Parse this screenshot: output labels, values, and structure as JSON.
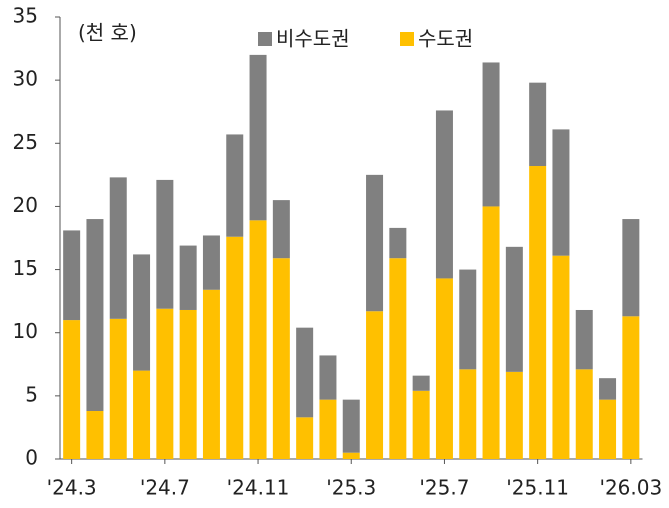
{
  "chart_data": {
    "type": "stacked_bar",
    "annotation": "(천 호)",
    "categories": [
      "'24.3",
      null,
      null,
      null,
      "'24.7",
      null,
      null,
      null,
      "'24.11",
      null,
      null,
      null,
      "'25.3",
      null,
      null,
      null,
      "'25.7",
      null,
      null,
      null,
      "'25.11",
      null,
      null,
      null,
      "'26.03"
    ],
    "series": [
      {
        "name": "비수도권",
        "color": "#808080",
        "values": [
          7.1,
          15.2,
          11.2,
          9.2,
          10.2,
          5.1,
          4.3,
          8.1,
          13.1,
          4.6,
          7.1,
          3.5,
          4.2,
          10.8,
          2.4,
          1.2,
          13.3,
          7.9,
          11.4,
          9.9,
          6.6,
          10.0,
          4.7,
          1.7,
          7.7
        ]
      },
      {
        "name": "수도권",
        "color": "#FFC000",
        "values": [
          11.0,
          3.8,
          11.1,
          7.0,
          11.9,
          11.8,
          13.4,
          17.6,
          18.9,
          15.9,
          3.3,
          4.7,
          0.5,
          11.7,
          15.9,
          5.4,
          14.3,
          7.1,
          20.0,
          6.9,
          23.2,
          16.1,
          7.1,
          4.7,
          11.3
        ]
      }
    ],
    "ylim": [
      0,
      35
    ],
    "yticks": [
      0,
      5,
      10,
      15,
      20,
      25,
      30,
      35
    ],
    "grid": false
  }
}
